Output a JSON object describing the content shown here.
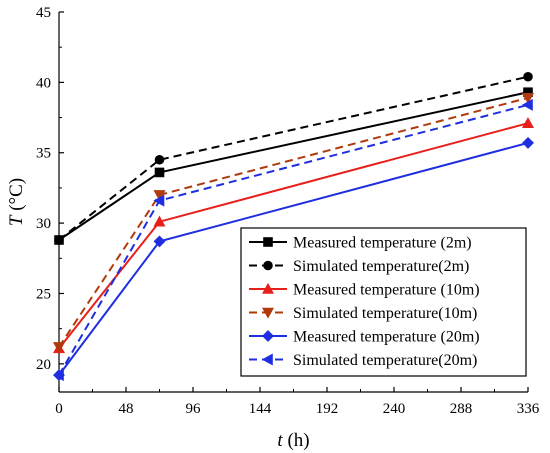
{
  "chart_data": {
    "type": "line",
    "title": "",
    "xlabel_var": "t",
    "xlabel_unit": " (h)",
    "ylabel_var": "T",
    "ylabel_unit": " (°C)",
    "xlim": [
      0,
      336
    ],
    "ylim": [
      18,
      45
    ],
    "xticks": [
      0,
      48,
      96,
      144,
      192,
      240,
      288,
      336
    ],
    "xtick_labels": [
      "0",
      "48",
      "96",
      "144",
      "192",
      "240",
      "288",
      "336"
    ],
    "yticks": [
      20,
      25,
      30,
      35,
      40,
      45
    ],
    "ytick_labels": [
      "20",
      "25",
      "30",
      "35",
      "40",
      "45"
    ],
    "grid": false,
    "legend_position": "bottom-right",
    "x": [
      0,
      72,
      336
    ],
    "series": [
      {
        "name": "Measured temperature (2m)",
        "values": [
          28.8,
          33.6,
          39.3
        ],
        "color": "#000000",
        "dash": "solid",
        "marker": "square"
      },
      {
        "name": "Simulated temperature(2m)",
        "values": [
          28.8,
          34.5,
          40.4
        ],
        "color": "#000000",
        "dash": "dashed",
        "marker": "circle"
      },
      {
        "name": "Measured temperature (10m)",
        "values": [
          21.1,
          30.1,
          37.1
        ],
        "color": "#e8201c",
        "dash": "solid",
        "marker": "triangle-up"
      },
      {
        "name": "Simulated temperature(10m)",
        "values": [
          21.2,
          32.0,
          38.9
        ],
        "color": "#b03a0c",
        "dash": "dashed",
        "marker": "triangle-down"
      },
      {
        "name": "Measured temperature (20m)",
        "values": [
          19.2,
          28.7,
          35.7
        ],
        "color": "#1f2fe0",
        "dash": "solid",
        "marker": "diamond"
      },
      {
        "name": "Simulated temperature(20m)",
        "values": [
          19.2,
          31.6,
          38.4
        ],
        "color": "#1f2fe0",
        "dash": "dashed",
        "marker": "triangle-left"
      }
    ]
  }
}
